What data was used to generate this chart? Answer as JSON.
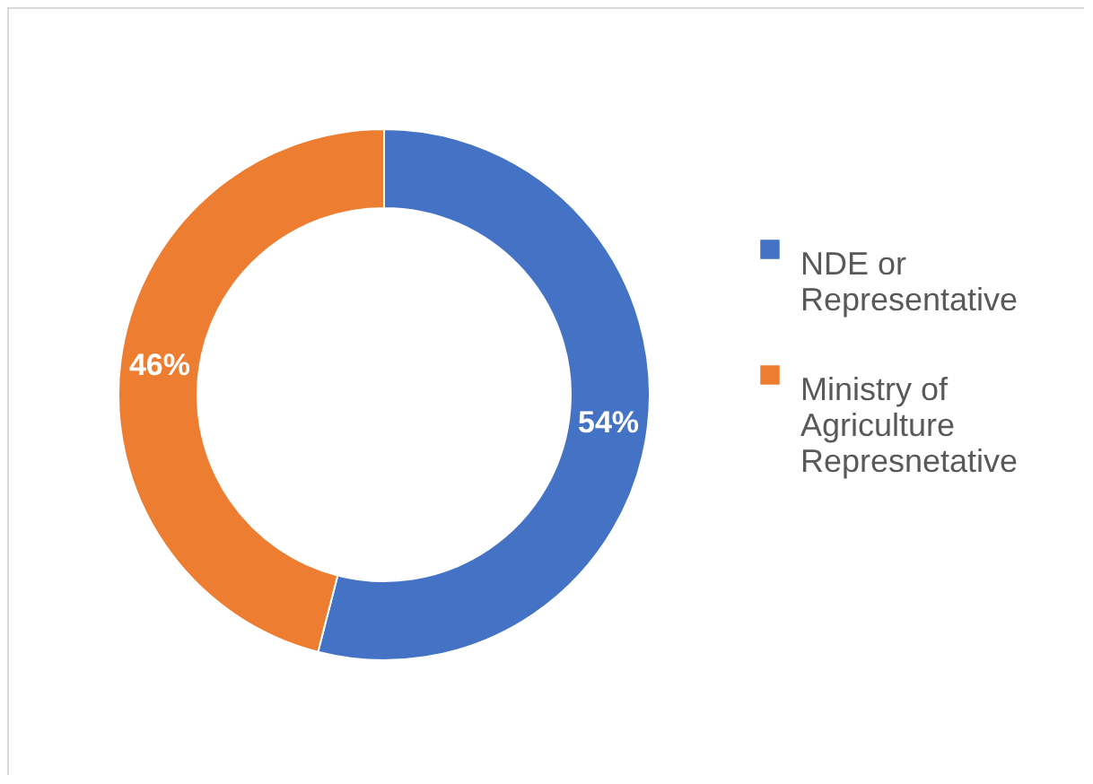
{
  "chart_data": {
    "type": "donut",
    "categories": [
      "NDE or Representative",
      "Ministry of Agriculture Represnetative"
    ],
    "values": [
      54,
      46
    ],
    "colors": [
      "#4472c4",
      "#ed7d31"
    ],
    "value_labels": [
      "54%",
      "46%"
    ],
    "legend": "right"
  }
}
